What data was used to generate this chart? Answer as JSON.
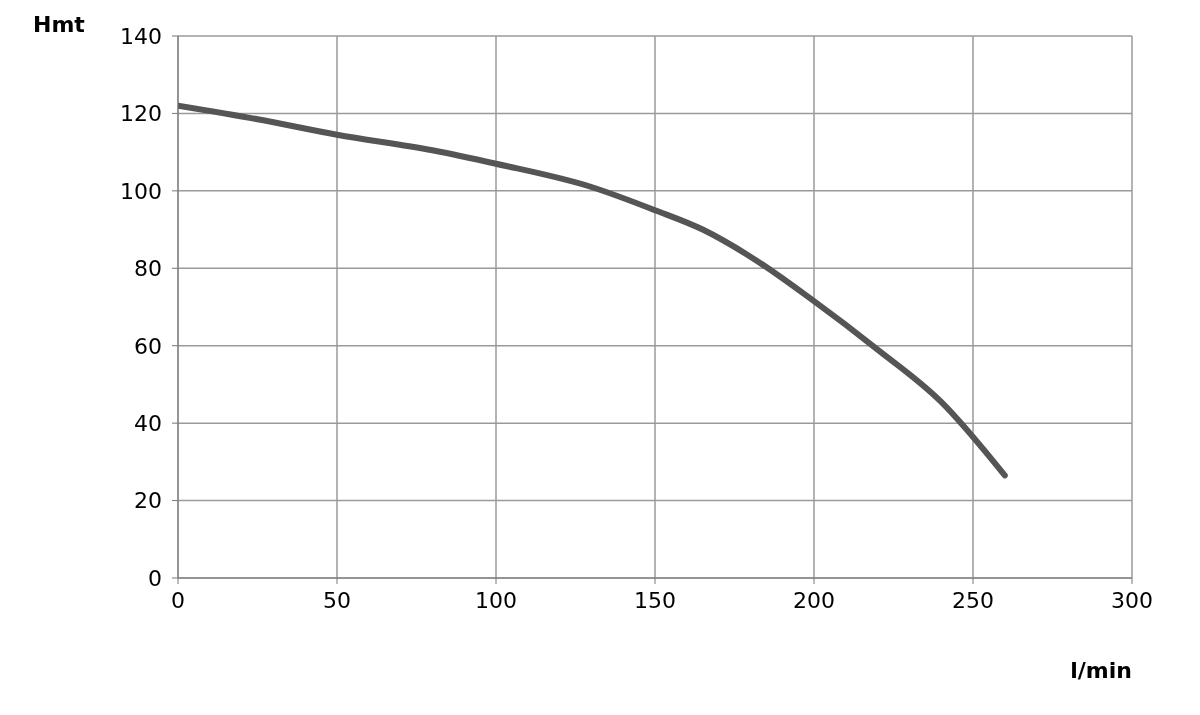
{
  "chart_data": {
    "type": "line",
    "xlabel": "l/min",
    "ylabel": "Hmt",
    "x": [
      0,
      25,
      50,
      80,
      100,
      130,
      150,
      165,
      180,
      200,
      220,
      240,
      260
    ],
    "series": [
      {
        "color": "#555555",
        "values": [
          122,
          118.5,
          114.5,
          110.5,
          107,
          101,
          95,
          90,
          83,
          71.5,
          59,
          45.5,
          26.5
        ]
      }
    ],
    "xlim": [
      0,
      300
    ],
    "xticks": [
      0,
      50,
      100,
      150,
      200,
      250,
      300
    ],
    "ylim": [
      0,
      140
    ],
    "yticks": [
      0,
      20,
      40,
      60,
      80,
      100,
      120,
      140
    ],
    "grid": true,
    "marker": "none",
    "line_style": "solid"
  }
}
